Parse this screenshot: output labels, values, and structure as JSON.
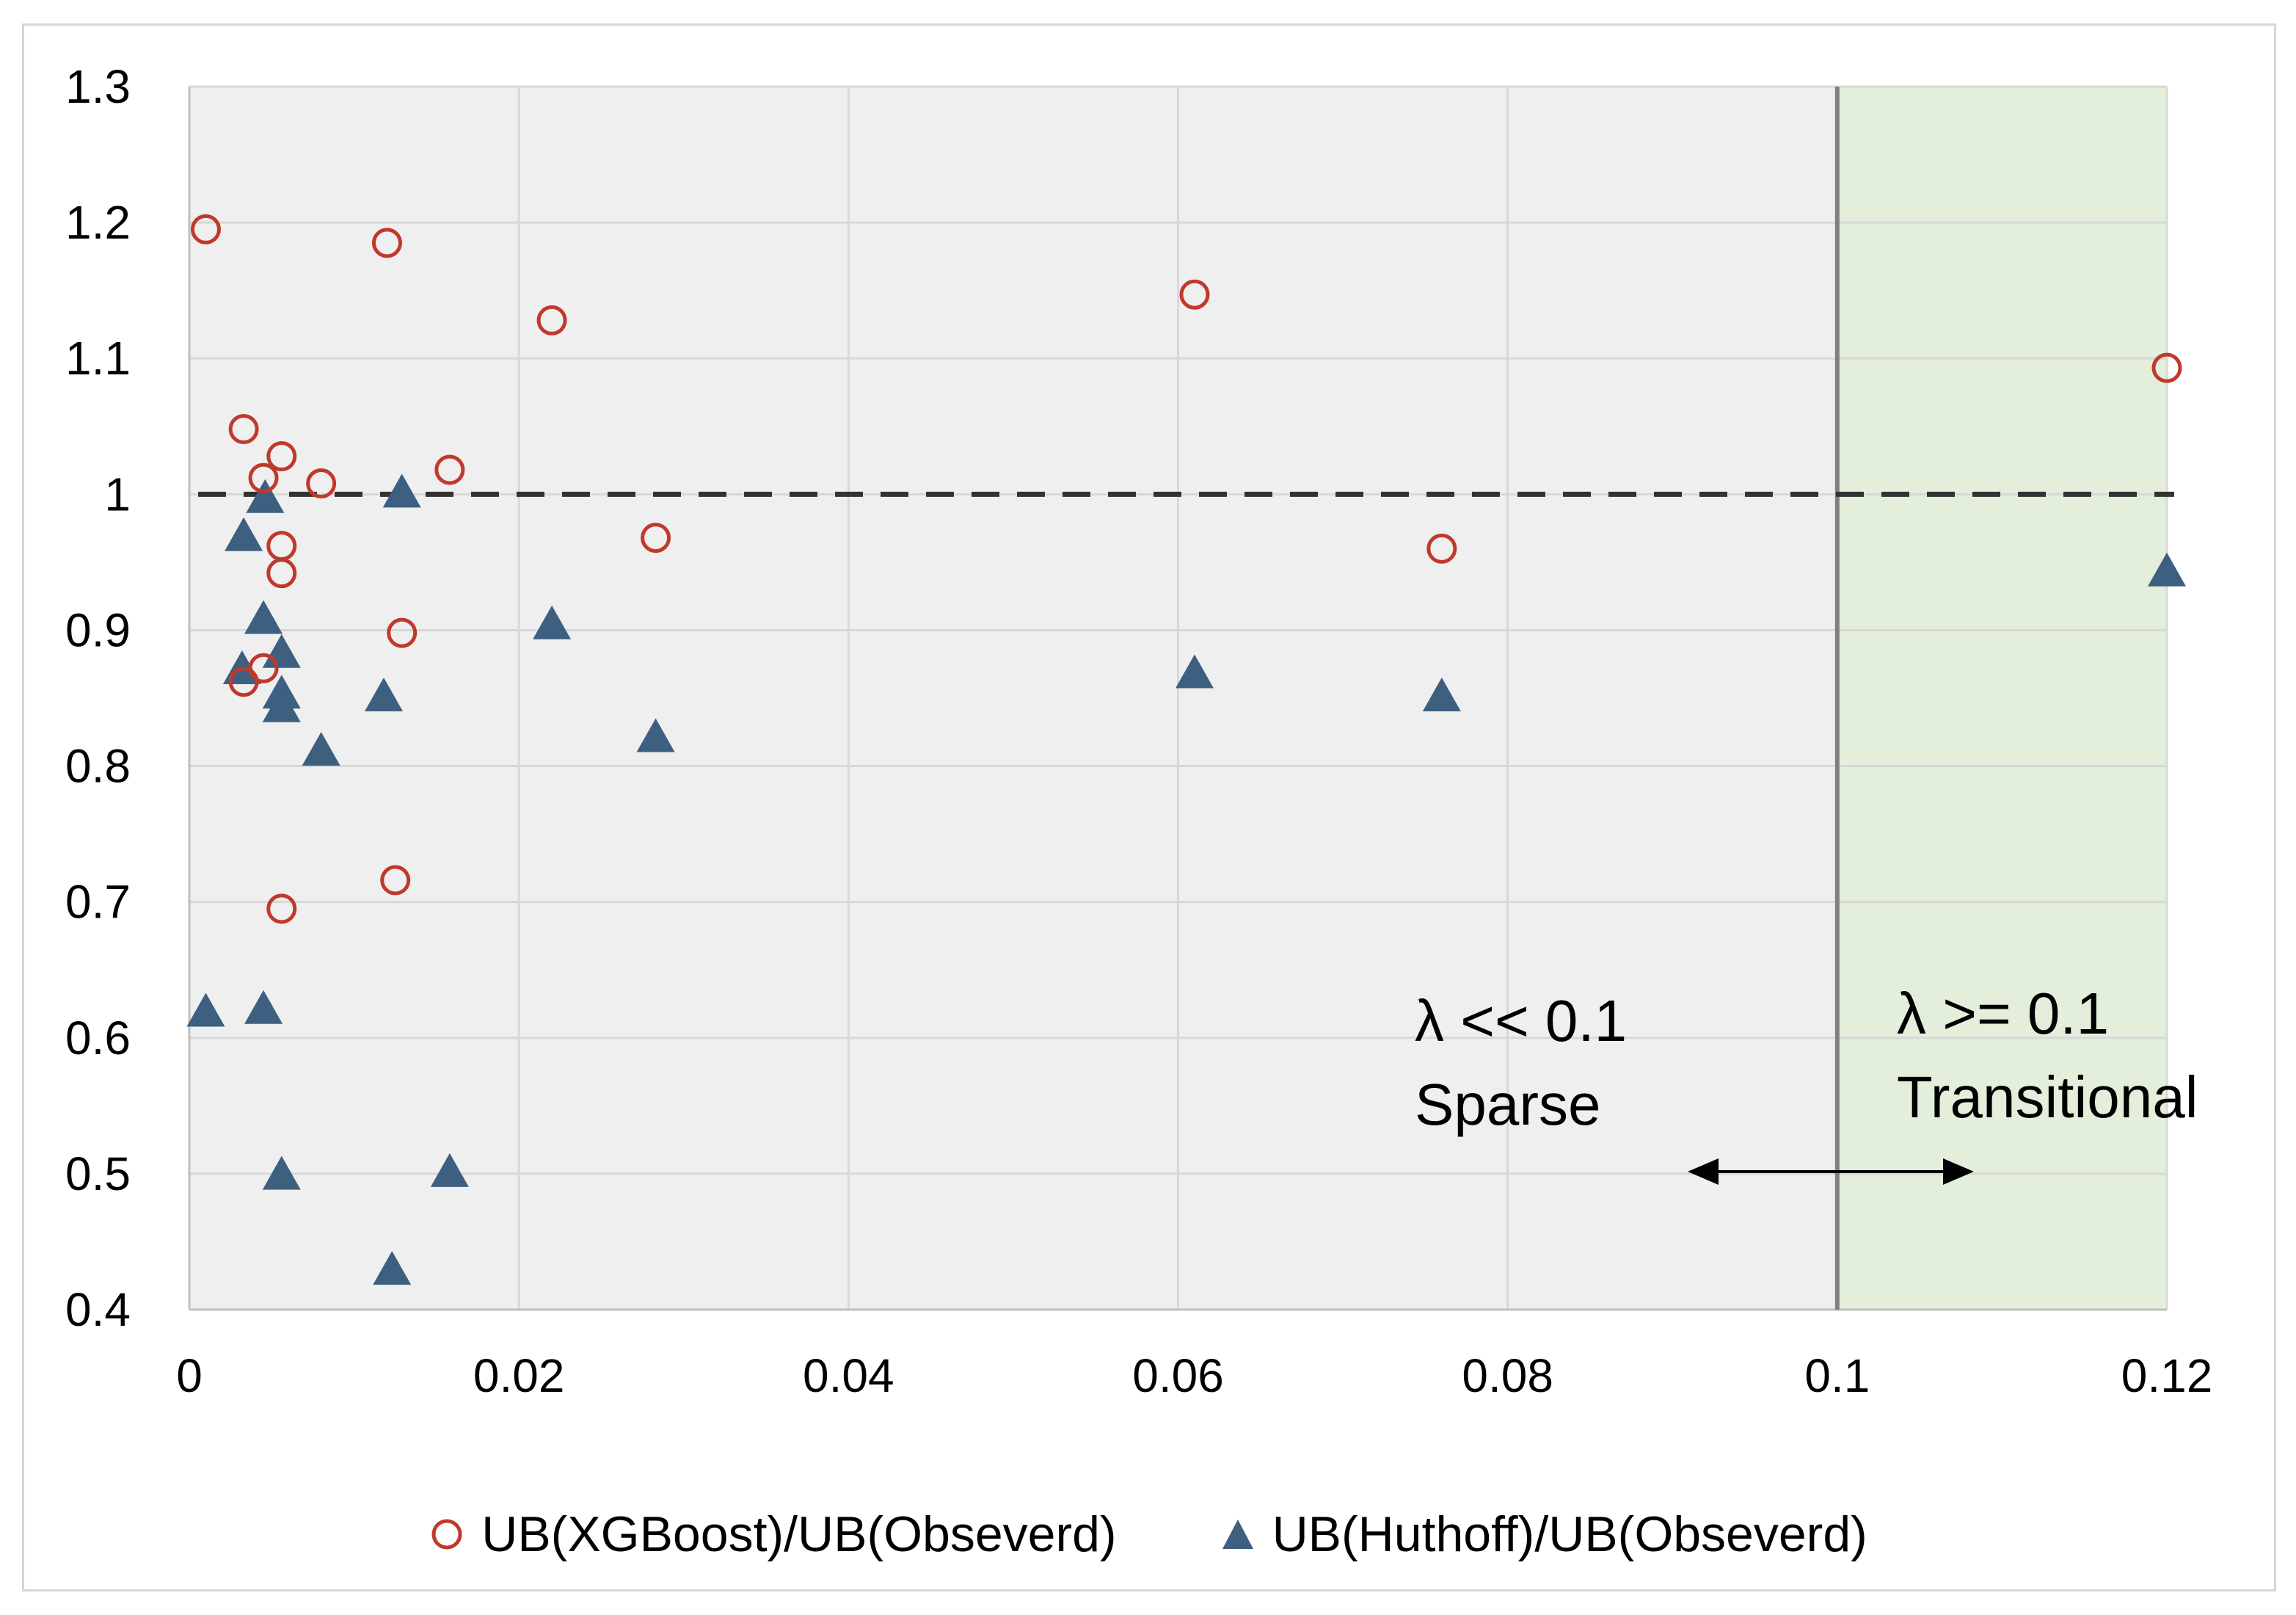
{
  "chart_data": {
    "type": "scatter",
    "xlim": [
      0,
      0.12
    ],
    "ylim": [
      0.4,
      1.3
    ],
    "x_ticks": [
      "0",
      "0.02",
      "0.04",
      "0.06",
      "0.08",
      "0.1",
      "0.12"
    ],
    "y_ticks": [
      "0.4",
      "0.5",
      "0.6",
      "0.7",
      "0.8",
      "0.9",
      "1",
      "1.1",
      "1.2",
      "1.3"
    ],
    "grid": true,
    "reference_line_y": 1.0,
    "boundary_x": 0.1,
    "shaded_region_x": [
      0.1,
      0.12
    ],
    "colors": {
      "plot_bg": "#efefef",
      "shaded_bg": "#e3eedb",
      "xgboost": "#c0392b",
      "huthoff": "#3d5f80",
      "grid": "#d8d8d8"
    },
    "annotations": [
      {
        "line1": "λ << 0.1",
        "line2": "Sparse"
      },
      {
        "line1": "λ >= 0.1",
        "line2": "Transitional"
      }
    ],
    "series": [
      {
        "name": "UB(XGBoost)/UB(Obseverd)",
        "marker": "open-circle",
        "points": [
          [
            0.001,
            1.195
          ],
          [
            0.012,
            1.185
          ],
          [
            0.022,
            1.128
          ],
          [
            0.061,
            1.147
          ],
          [
            0.12,
            1.093
          ],
          [
            0.0033,
            1.048
          ],
          [
            0.0056,
            1.028
          ],
          [
            0.0045,
            1.012
          ],
          [
            0.008,
            1.008
          ],
          [
            0.0158,
            1.018
          ],
          [
            0.0056,
            0.962
          ],
          [
            0.0056,
            0.942
          ],
          [
            0.0283,
            0.968
          ],
          [
            0.076,
            0.96
          ],
          [
            0.0129,
            0.898
          ],
          [
            0.0045,
            0.872
          ],
          [
            0.0033,
            0.862
          ],
          [
            0.0125,
            0.716
          ],
          [
            0.0056,
            0.695
          ]
        ]
      },
      {
        "name": "UB(Huthoff)/UB(Obseverd)",
        "marker": "filled-triangle",
        "points": [
          [
            0.0046,
            0.996
          ],
          [
            0.0129,
            1.0
          ],
          [
            0.0033,
            0.968
          ],
          [
            0.12,
            0.942
          ],
          [
            0.0045,
            0.907
          ],
          [
            0.022,
            0.903
          ],
          [
            0.0056,
            0.882
          ],
          [
            0.0032,
            0.87
          ],
          [
            0.061,
            0.867
          ],
          [
            0.0118,
            0.85
          ],
          [
            0.076,
            0.85
          ],
          [
            0.0056,
            0.852
          ],
          [
            0.0056,
            0.842
          ],
          [
            0.0283,
            0.82
          ],
          [
            0.008,
            0.81
          ],
          [
            0.001,
            0.618
          ],
          [
            0.0045,
            0.62
          ],
          [
            0.0056,
            0.498
          ],
          [
            0.0158,
            0.5
          ],
          [
            0.0123,
            0.428
          ]
        ]
      }
    ]
  },
  "legend": {
    "xgboost_label": "UB(XGBoost)/UB(Obseverd)",
    "huthoff_label": "UB(Huthoff)/UB(Obseverd)"
  }
}
